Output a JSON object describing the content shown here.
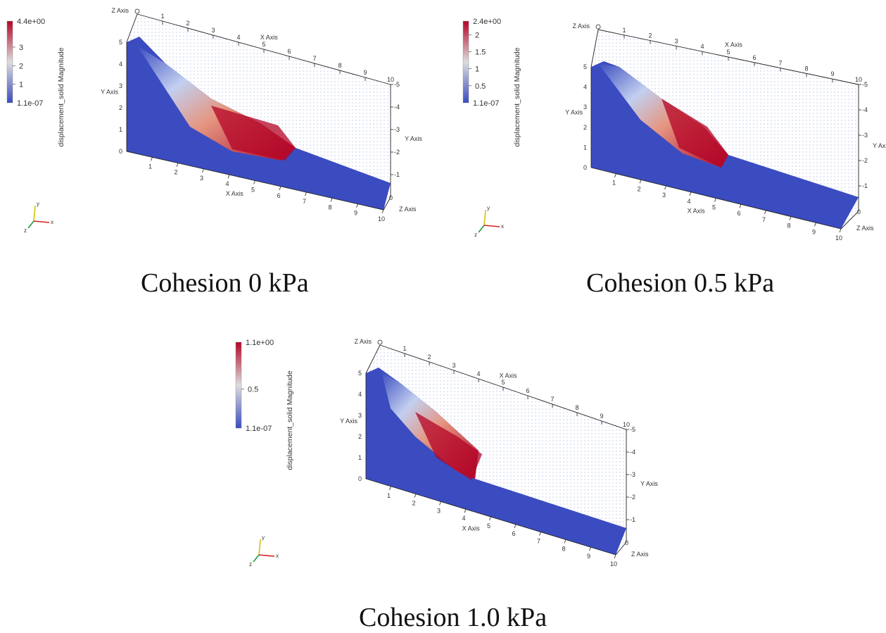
{
  "panels": [
    {
      "caption": "Cohesion 0 kPa",
      "colorbar": {
        "title": "displacement_solid Magnitude",
        "max_label": "4.4e+00",
        "min_label": "1.1e-07",
        "max": 4.4,
        "min": 1.1e-07,
        "ticks": [
          {
            "value": 1,
            "label": "1"
          },
          {
            "value": 2,
            "label": "2"
          },
          {
            "value": 3,
            "label": "3"
          }
        ]
      },
      "axes": {
        "x_title": "X Axis",
        "y_title": "Y Axis",
        "z_title": "Z Axis",
        "x_ticks": [
          "1",
          "2",
          "3",
          "4",
          "5",
          "6",
          "7",
          "8",
          "9",
          "10"
        ],
        "y_ticks": [
          "0",
          "1",
          "2",
          "3",
          "4",
          "5"
        ],
        "z_ticks": [
          "0",
          "1",
          "2",
          "3",
          "4",
          "5"
        ],
        "near_x_ticks": [
          "1",
          "2",
          "3",
          "4",
          "5",
          "6",
          "7",
          "8",
          "9",
          "10"
        ],
        "back_z_ticks": [
          "-1",
          "-2",
          "-3",
          "-4",
          "-5"
        ]
      },
      "triad": {
        "x": "x",
        "y": "y",
        "z": "z"
      }
    },
    {
      "caption": "Cohesion 0.5 kPa",
      "colorbar": {
        "title": "displacement_solid Magnitude",
        "max_label": "2.4e+00",
        "min_label": "1.1e-07",
        "max": 2.4,
        "min": 1.1e-07,
        "ticks": [
          {
            "value": 0.5,
            "label": "0.5"
          },
          {
            "value": 1,
            "label": "1"
          },
          {
            "value": 1.5,
            "label": "1.5"
          },
          {
            "value": 2,
            "label": "2"
          }
        ]
      },
      "axes": {
        "x_title": "X Axis",
        "y_title": "Y Axis",
        "z_title": "Z Axis",
        "x_ticks": [
          "1",
          "2",
          "3",
          "4",
          "5",
          "6",
          "7",
          "8",
          "9",
          "10"
        ],
        "y_ticks": [
          "0",
          "1",
          "2",
          "3",
          "4",
          "5"
        ],
        "z_ticks": [
          "0",
          "1",
          "2",
          "3",
          "4",
          "5"
        ],
        "near_x_ticks": [
          "1",
          "2",
          "3",
          "4",
          "5",
          "6",
          "7",
          "8",
          "9",
          "10"
        ],
        "back_z_ticks": [
          "-1",
          "-2",
          "-3",
          "-4",
          "-5"
        ]
      },
      "triad": {
        "x": "x",
        "y": "y",
        "z": "z"
      }
    },
    {
      "caption": "Cohesion 1.0 kPa",
      "colorbar": {
        "title": "displacement_solid Magnitude",
        "max_label": "1.1e+00",
        "min_label": "1.1e-07",
        "max": 1.1,
        "min": 1.1e-07,
        "ticks": [
          {
            "value": 0.5,
            "label": "0.5"
          }
        ]
      },
      "axes": {
        "x_title": "X Axis",
        "y_title": "Y Axis",
        "z_title": "Z Axis",
        "x_ticks": [
          "1",
          "2",
          "3",
          "4",
          "5",
          "6",
          "7",
          "8",
          "9",
          "10"
        ],
        "y_ticks": [
          "0",
          "1",
          "2",
          "3",
          "4",
          "5"
        ],
        "z_ticks": [
          "0",
          "1",
          "2",
          "3",
          "4",
          "5"
        ],
        "near_x_ticks": [
          "1",
          "2",
          "3",
          "4",
          "5",
          "6",
          "7",
          "8",
          "9",
          "10"
        ],
        "back_z_ticks": [
          "-1",
          "-2",
          "-3",
          "-4",
          "-5"
        ]
      },
      "triad": {
        "x": "x",
        "y": "y",
        "z": "z"
      }
    }
  ],
  "colors": {
    "low": "#3b4cc0",
    "mid": "#dddddd",
    "high": "#b40426",
    "grid_dots": "#7f8fd6",
    "axis": "#222222"
  }
}
